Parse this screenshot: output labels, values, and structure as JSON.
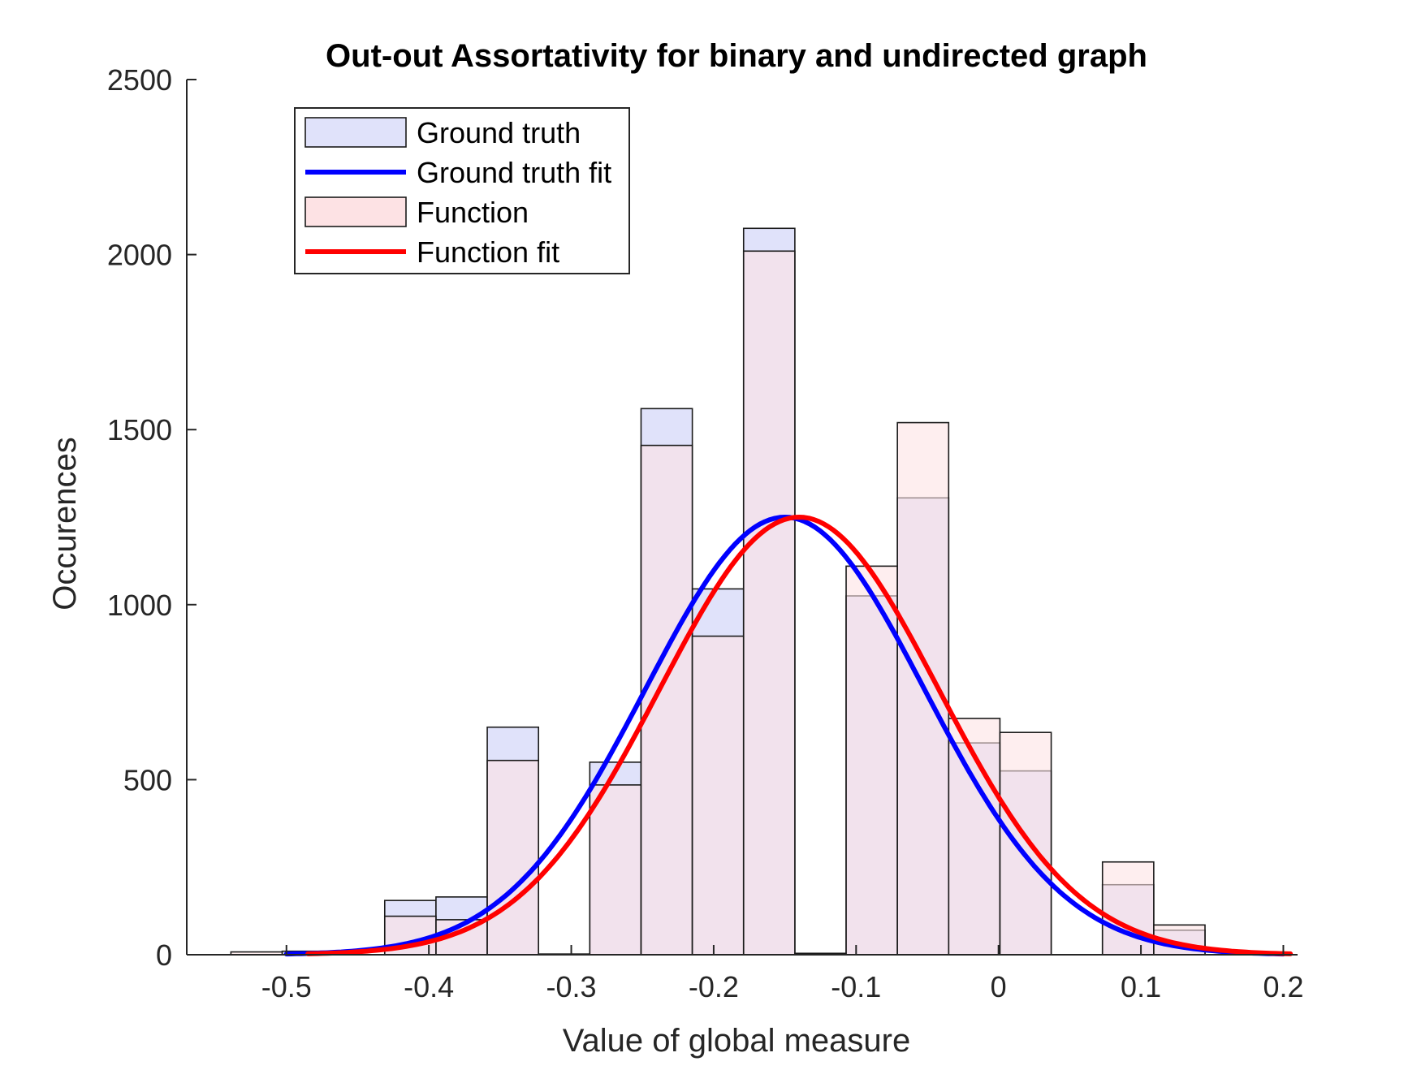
{
  "chart_data": {
    "type": "bar",
    "title": "Out-out Assortativity for binary and undirected graph",
    "xlabel": "Value of global measure",
    "ylabel": "Occurences",
    "xlim": [
      -0.57,
      0.21
    ],
    "ylim": [
      0,
      2500
    ],
    "xticks": [
      -0.5,
      -0.4,
      -0.3,
      -0.2,
      -0.1,
      0,
      0.1,
      0.2
    ],
    "xtick_labels": [
      "-0.5",
      "-0.4",
      "-0.3",
      "-0.2",
      "-0.1",
      "0",
      "0.1",
      "0.2"
    ],
    "yticks": [
      0,
      500,
      1000,
      1500,
      2000,
      2500
    ],
    "ytick_labels": [
      "0",
      "500",
      "1000",
      "1500",
      "2000",
      "2500"
    ],
    "grid": false,
    "legend_position": "top-left",
    "bin_edges": [
      -0.539,
      -0.503,
      -0.467,
      -0.431,
      -0.395,
      -0.359,
      -0.323,
      -0.287,
      -0.251,
      -0.215,
      -0.179,
      -0.143,
      -0.107,
      -0.071,
      -0.035,
      0.001,
      0.037,
      0.073,
      0.109,
      0.145,
      0.181
    ],
    "series": [
      {
        "name": "Ground truth",
        "kind": "histogram",
        "color": "#e0e2fa",
        "values": [
          0,
          10,
          0,
          155,
          165,
          650,
          0,
          550,
          1560,
          1045,
          2075,
          0,
          1025,
          1305,
          605,
          525,
          0,
          200,
          70,
          0
        ]
      },
      {
        "name": "Ground truth fit",
        "kind": "normal-fit",
        "color": "#0000ff",
        "mean": -0.15,
        "sigma": 0.098,
        "peak": 1250,
        "x_range": [
          -0.5,
          0.2
        ]
      },
      {
        "name": "Function",
        "kind": "histogram",
        "color": "#fde2e4",
        "values": [
          8,
          0,
          0,
          110,
          100,
          555,
          2,
          485,
          1455,
          910,
          2010,
          4,
          1110,
          1520,
          675,
          635,
          0,
          265,
          85,
          0
        ]
      },
      {
        "name": "Function fit",
        "kind": "normal-fit",
        "color": "#ff0000",
        "mean": -0.14,
        "sigma": 0.098,
        "peak": 1250,
        "x_range": [
          -0.485,
          0.205
        ]
      }
    ]
  }
}
